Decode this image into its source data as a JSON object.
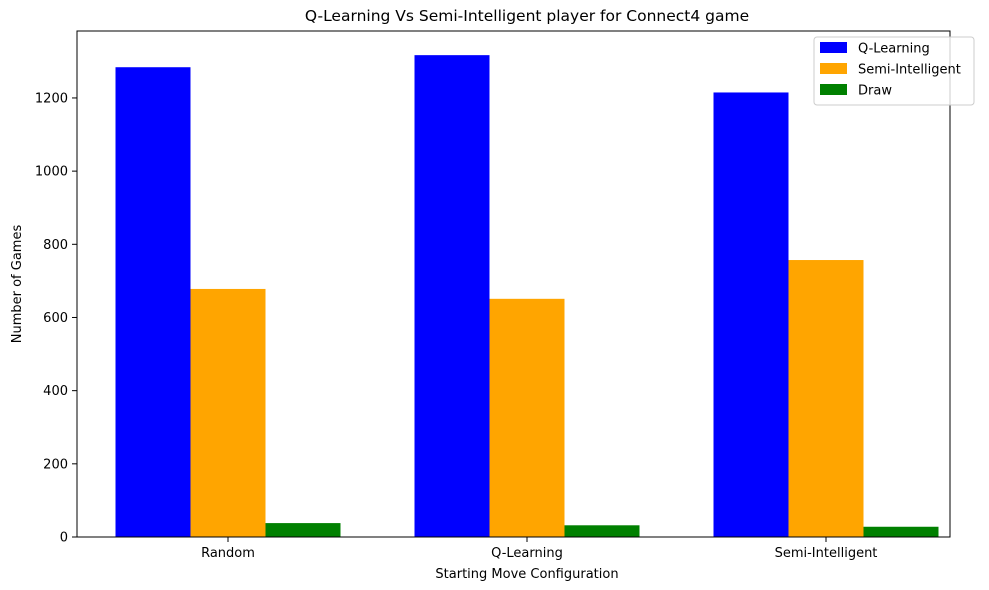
{
  "chart_data": {
    "type": "bar",
    "title": "Q-Learning Vs Semi-Intelligent player for Connect4 game",
    "xlabel": "Starting Move Configuration",
    "ylabel": "Number of Games",
    "categories": [
      "Random",
      "Q-Learning",
      "Semi-Intelligent"
    ],
    "series": [
      {
        "name": "Q-Learning",
        "color": "#0000ff",
        "values": [
          1284,
          1317,
          1215
        ]
      },
      {
        "name": "Semi-Intelligent",
        "color": "#ffa500",
        "values": [
          678,
          651,
          757
        ]
      },
      {
        "name": "Draw",
        "color": "#008000",
        "values": [
          38,
          32,
          28
        ]
      }
    ],
    "ylim": [
      0,
      1383
    ],
    "yticks": [
      0,
      200,
      400,
      600,
      800,
      1000,
      1200
    ],
    "legend_position": "top-right",
    "grid": false
  }
}
